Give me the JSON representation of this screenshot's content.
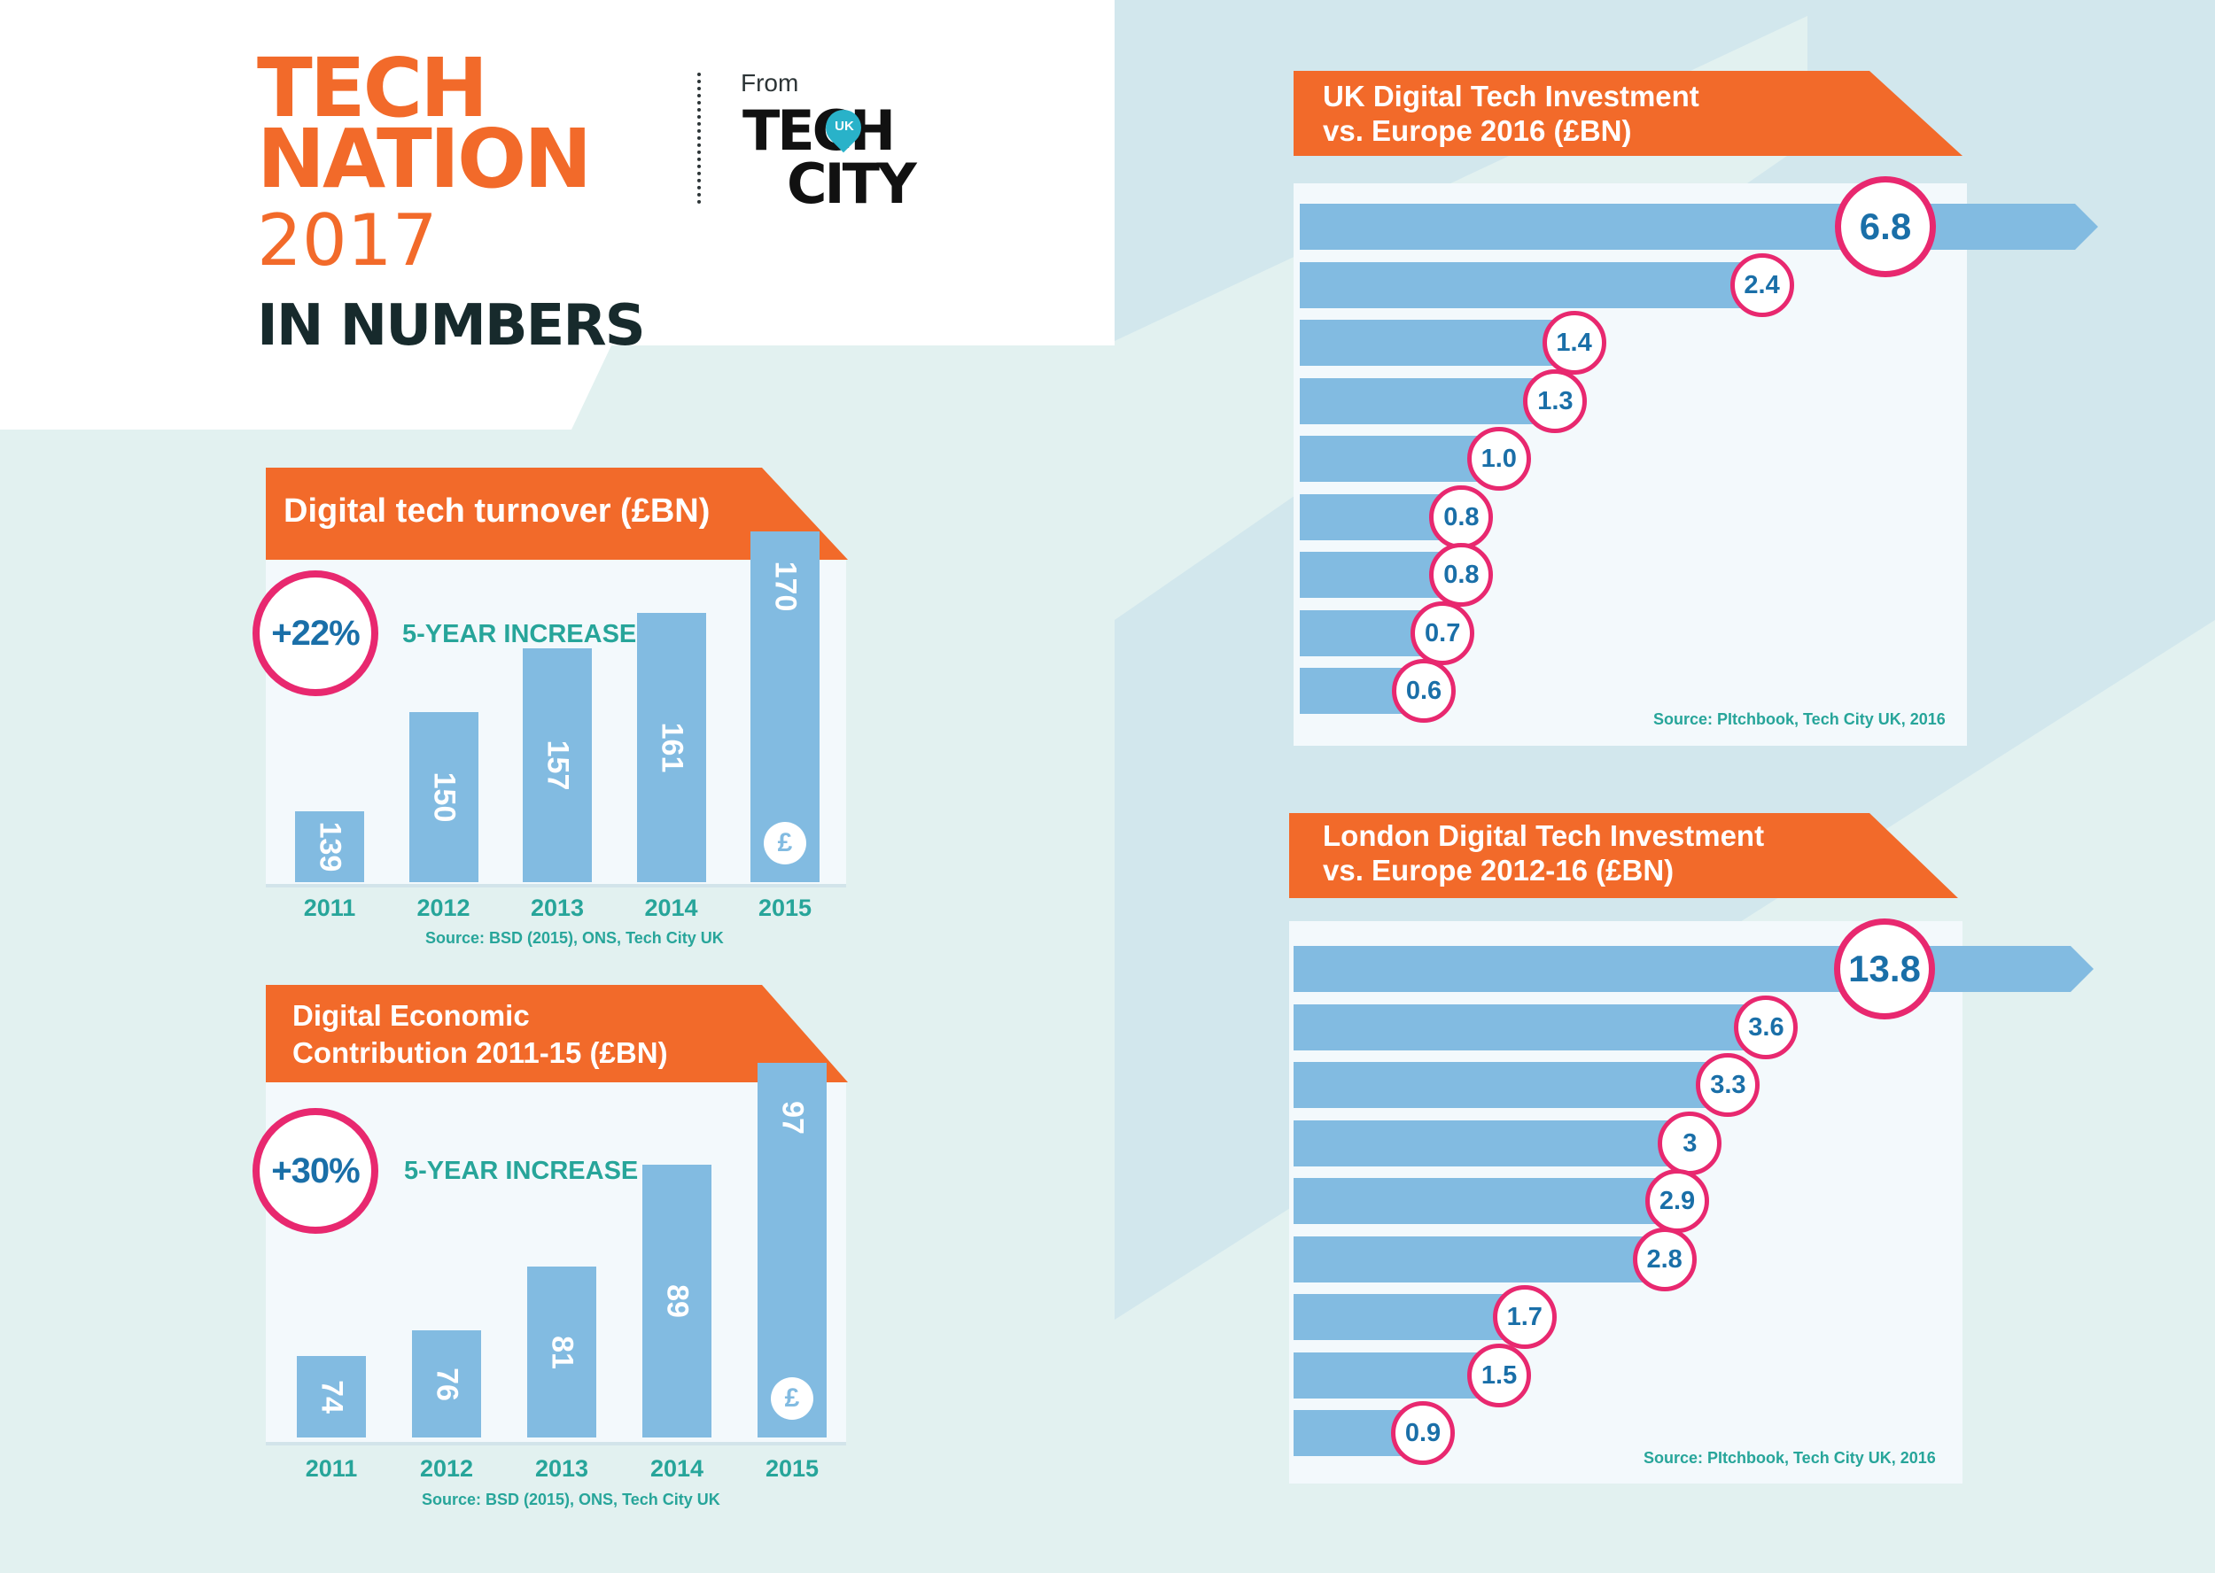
{
  "colors": {
    "orange": "#f26a2a",
    "bar": "#82bbe1",
    "circle_ring": "#e8286f",
    "value_text": "#1a6fa8",
    "teal_text": "#27a59a",
    "panel": "#f3f9fc",
    "background": "#e2f1f0"
  },
  "header": {
    "title_line1": "TECH",
    "title_line2": "NATION",
    "year": "2017",
    "subtitle": "IN NUMBERS",
    "from_label": "From",
    "partner_line1": "TECH",
    "partner_line2": "CITY",
    "partner_pin": "UK"
  },
  "chart_data": [
    {
      "type": "bar",
      "title": "Digital tech turnover (£BN)",
      "categories": [
        "2011",
        "2012",
        "2013",
        "2014",
        "2015"
      ],
      "values": [
        139,
        150,
        157,
        161,
        170
      ],
      "highlight": "+22%",
      "highlight_label": "5-YEAR INCREASE",
      "source": "Source: BSD (2015), ONS, Tech City UK",
      "icon": "money-bag-icon"
    },
    {
      "type": "bar",
      "title_line1": "Digital Economic",
      "title_line2": "Contribution 2011-15 (£BN)",
      "categories": [
        "2011",
        "2012",
        "2013",
        "2014",
        "2015"
      ],
      "values": [
        74,
        76,
        81,
        89,
        97
      ],
      "highlight": "+30%",
      "highlight_label": "5-YEAR INCREASE",
      "source": "Source: BSD (2015), ONS, Tech City UK",
      "icon": "money-bag-icon"
    },
    {
      "type": "bar",
      "orientation": "horizontal",
      "title_line1": "UK Digital Tech Investment",
      "title_line2": "vs. Europe 2016 (£BN)",
      "values": [
        "6.8",
        "2.4",
        "1.4",
        "1.3",
        "1.0",
        "0.8",
        "0.8",
        "0.7",
        "0.6"
      ],
      "source": "Source: PItchbook, Tech City UK, 2016"
    },
    {
      "type": "bar",
      "orientation": "horizontal",
      "title_line1": "London Digital Tech Investment",
      "title_line2": "vs. Europe 2012-16 (£BN)",
      "values": [
        "13.8",
        "3.6",
        "3.3",
        "3",
        "2.9",
        "2.8",
        "1.7",
        "1.5",
        "0.9"
      ],
      "source": "Source: PItchbook, Tech City UK, 2016"
    }
  ]
}
